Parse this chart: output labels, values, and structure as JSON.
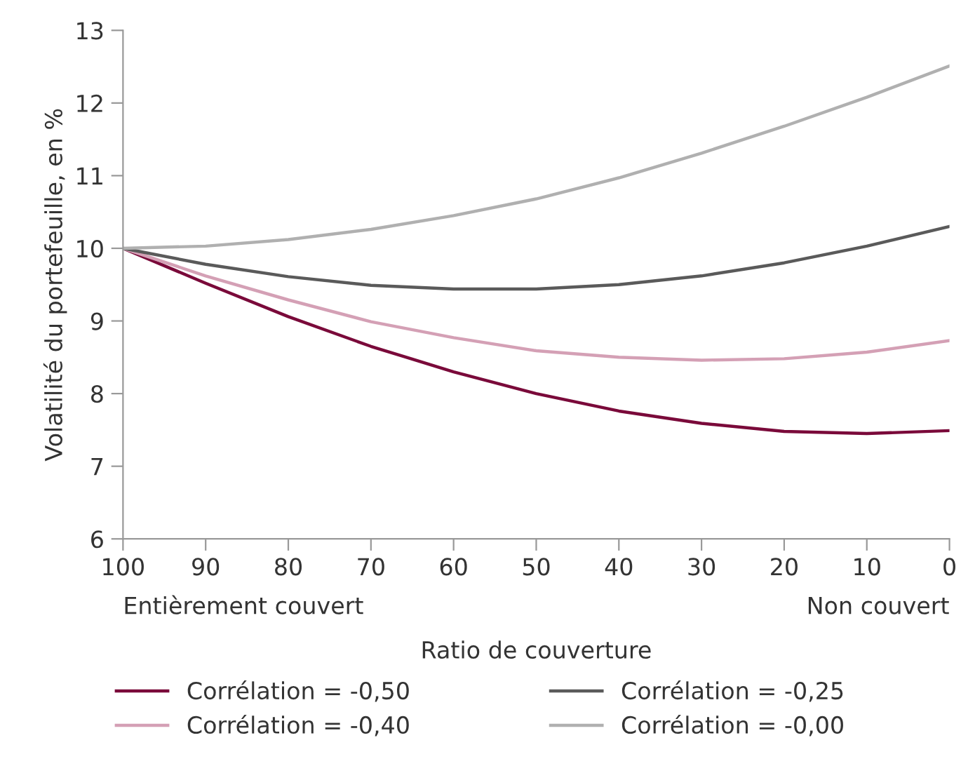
{
  "chart_data": {
    "type": "line",
    "xlabel": "Ratio de couverture",
    "ylabel": "Volatilité du portefeuille, en %",
    "x": [
      100,
      90,
      80,
      70,
      60,
      50,
      40,
      30,
      20,
      10,
      0
    ],
    "series": [
      {
        "name": "Corrélation = -0,50",
        "color": "#7a0a3a",
        "values": [
          10,
          9.52,
          9.06,
          8.65,
          8.3,
          8.0,
          7.76,
          7.59,
          7.48,
          7.45,
          7.49
        ]
      },
      {
        "name": "Corrélation = -0,40",
        "color": "#d4a0b5",
        "values": [
          10,
          9.62,
          9.29,
          8.99,
          8.77,
          8.59,
          8.5,
          8.46,
          8.48,
          8.57,
          8.73
        ]
      },
      {
        "name": "Corrélation = -0,25",
        "color": "#5a5a5a",
        "values": [
          10,
          9.78,
          9.61,
          9.49,
          9.44,
          9.44,
          9.5,
          9.62,
          9.8,
          10.03,
          10.3
        ]
      },
      {
        "name": "Corrélation = -0,00",
        "color": "#b0b0b0",
        "values": [
          10,
          10.03,
          10.12,
          10.26,
          10.45,
          10.68,
          10.97,
          11.31,
          11.68,
          12.08,
          12.51
        ]
      }
    ],
    "xlim": [
      100,
      0
    ],
    "xticks": [
      100,
      90,
      80,
      70,
      60,
      50,
      40,
      30,
      20,
      10,
      0
    ],
    "ylim": [
      6,
      13
    ],
    "yticks": [
      6,
      7,
      8,
      9,
      10,
      11,
      12,
      13
    ],
    "annotations": [
      "Entièrement couvert",
      "Non couvert"
    ],
    "grid": false,
    "legend": "bottom",
    "marker": "none",
    "line_style": "solid"
  }
}
